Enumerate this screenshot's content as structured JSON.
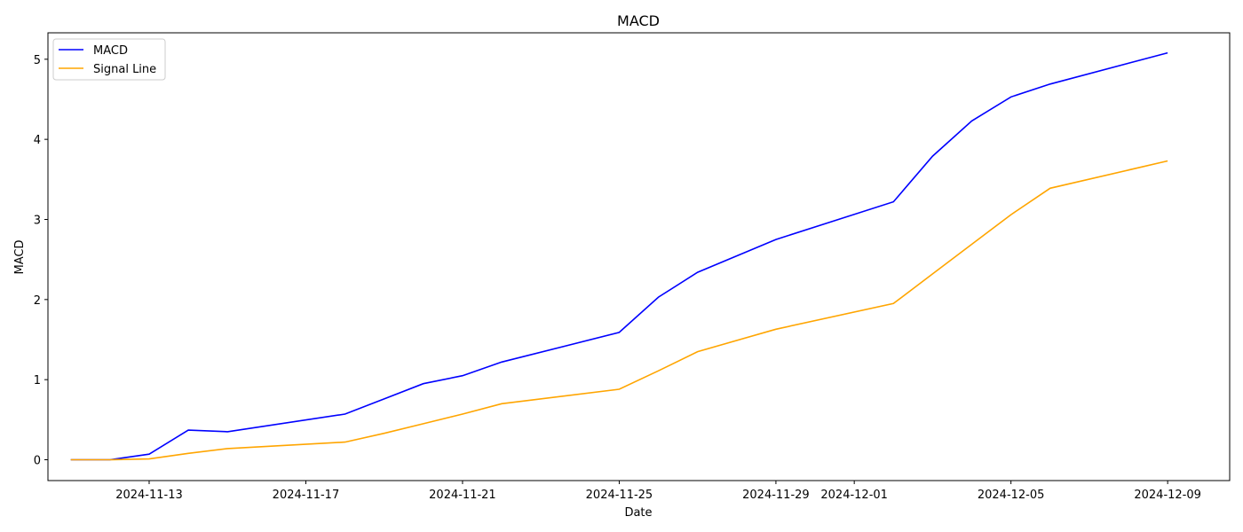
{
  "chart_data": {
    "type": "line",
    "title": "MACD",
    "xlabel": "Date",
    "ylabel": "MACD",
    "grid": false,
    "legend_position": "top-left",
    "x_ticks": [
      "2024-11-13",
      "2024-11-17",
      "2024-11-21",
      "2024-11-25",
      "2024-11-29",
      "2024-12-01",
      "2024-12-05",
      "2024-12-09"
    ],
    "y_ticks": [
      0,
      1,
      2,
      3,
      4,
      5
    ],
    "xlim": [
      "2024-11-10T10:00",
      "2024-12-10T14:00"
    ],
    "ylim": [
      -0.26,
      5.33
    ],
    "x": [
      "2024-11-11",
      "2024-11-12",
      "2024-11-13",
      "2024-11-14",
      "2024-11-15",
      "2024-11-18",
      "2024-11-19",
      "2024-11-20",
      "2024-11-21",
      "2024-11-22",
      "2024-11-25",
      "2024-11-26",
      "2024-11-27",
      "2024-11-29",
      "2024-12-02",
      "2024-12-03",
      "2024-12-04",
      "2024-12-05",
      "2024-12-06",
      "2024-12-09"
    ],
    "series": [
      {
        "name": "MACD",
        "color": "#0000ff",
        "values": [
          0.0,
          0.0,
          0.07,
          0.37,
          0.35,
          0.57,
          0.76,
          0.95,
          1.05,
          1.22,
          1.59,
          2.03,
          2.34,
          2.75,
          3.22,
          3.79,
          4.23,
          4.53,
          4.69,
          5.08
        ]
      },
      {
        "name": "Signal Line",
        "color": "#ffa500",
        "values": [
          0.0,
          0.0,
          0.01,
          0.08,
          0.14,
          0.22,
          0.33,
          0.45,
          0.57,
          0.7,
          0.88,
          1.11,
          1.35,
          1.63,
          1.95,
          2.32,
          2.69,
          3.06,
          3.39,
          3.73
        ]
      }
    ]
  }
}
